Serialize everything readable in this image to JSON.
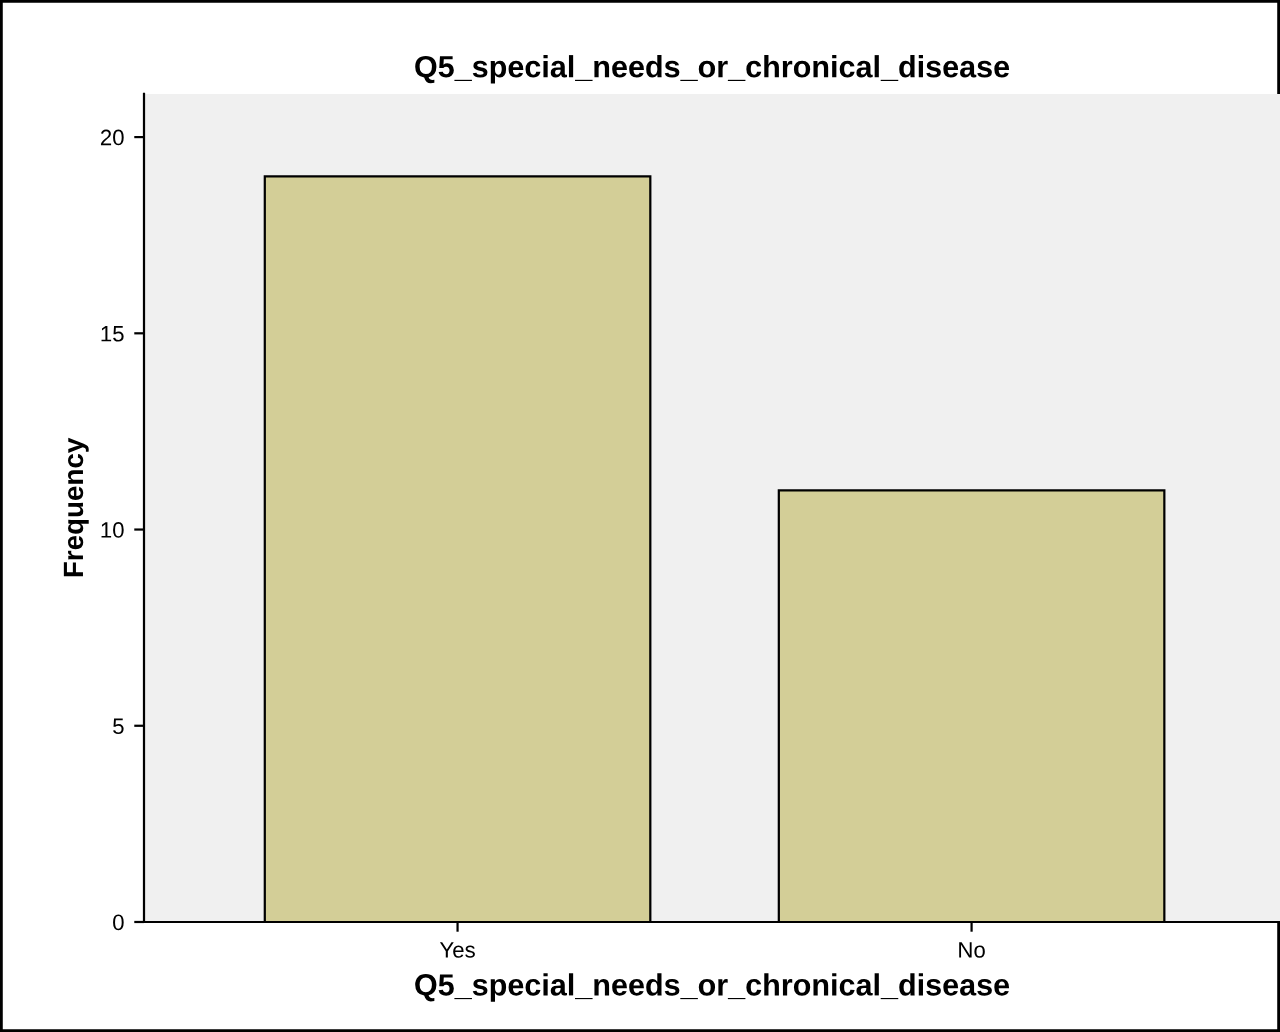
{
  "chart_data": {
    "type": "bar",
    "title": "Q5_special_needs_or_chronical_disease",
    "xlabel": "Q5_special_needs_or_chronical_disease",
    "ylabel": "Frequency",
    "categories": [
      "Yes",
      "No"
    ],
    "values": [
      19,
      11
    ],
    "color": "#d3ce97",
    "ylim": [
      0,
      21.1
    ],
    "yticks": [
      0,
      5,
      10,
      15,
      20
    ],
    "grid": false
  }
}
